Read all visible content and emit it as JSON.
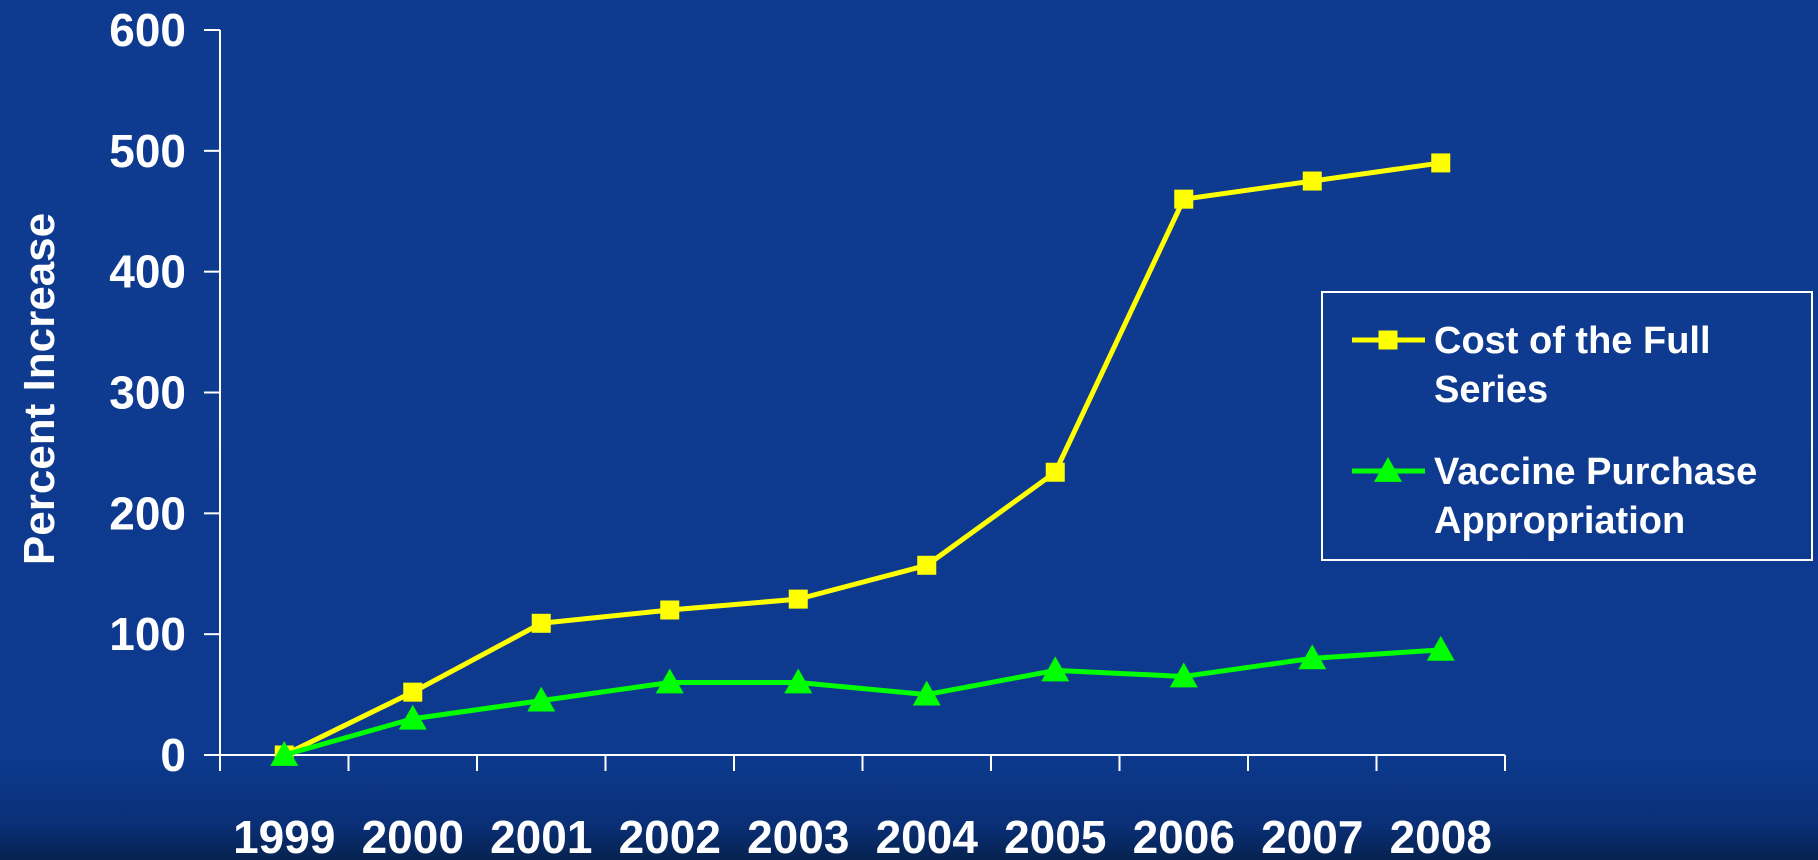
{
  "chart_data": {
    "type": "line",
    "title": "",
    "xlabel": "",
    "ylabel": "Percent Increase",
    "ylim": [
      0,
      600
    ],
    "y_ticks": [
      0,
      100,
      200,
      300,
      400,
      500,
      600
    ],
    "y_tick_labels": [
      "0",
      "100",
      "200",
      "300",
      "400",
      "500",
      "600"
    ],
    "categories": [
      "1999",
      "2000",
      "2001",
      "2002",
      "2003",
      "2004",
      "2005",
      "2006",
      "2007",
      "2008"
    ],
    "series": [
      {
        "name": "Cost of the Full Series",
        "name_lines": [
          "Cost of the Full",
          "Series"
        ],
        "color": "#ffff00",
        "marker": "square",
        "values": [
          0,
          52,
          109,
          120,
          129,
          157,
          234,
          460,
          475,
          490
        ]
      },
      {
        "name": "Vaccine Purchase Appropriation",
        "name_lines": [
          "Vaccine Purchase",
          "Appropriation"
        ],
        "color": "#00ff00",
        "marker": "triangle",
        "values": [
          0,
          30,
          45,
          60,
          60,
          50,
          70,
          65,
          80,
          87
        ]
      }
    ],
    "grid": false,
    "legend_position": "right",
    "background_color": "#0d3a8f",
    "axis_color": "#ffffff"
  }
}
